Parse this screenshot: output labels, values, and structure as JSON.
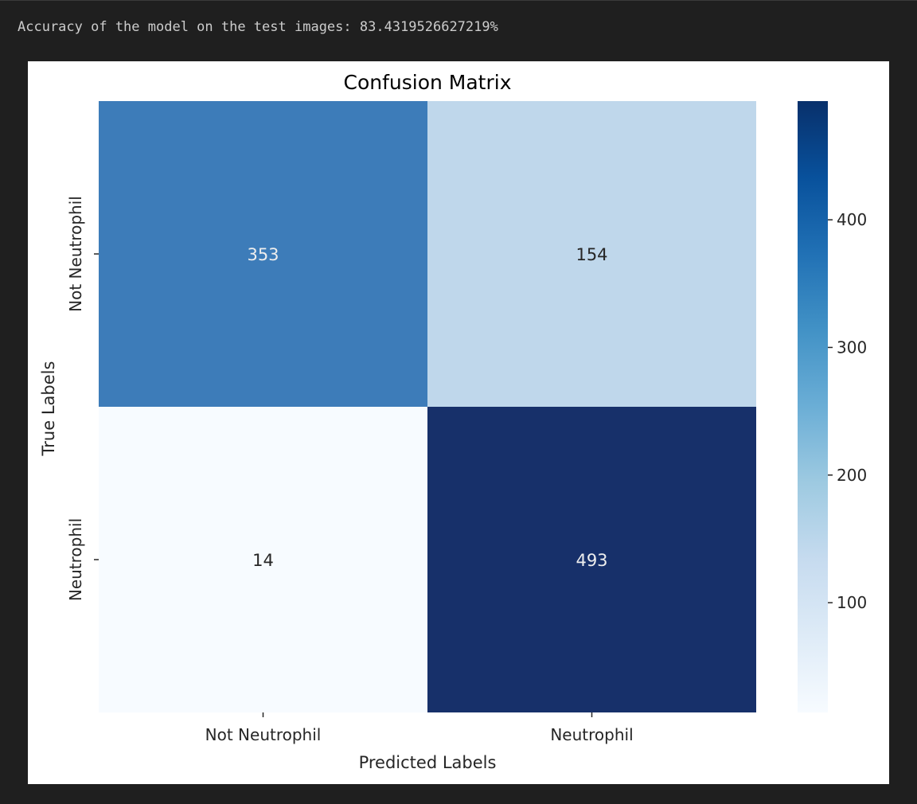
{
  "output": {
    "accuracy_text": "Accuracy of the model on the test images: 83.4319526627219%"
  },
  "chart_data": {
    "type": "heatmap",
    "title": "Confusion Matrix",
    "xlabel": "Predicted Labels",
    "ylabel": "True Labels",
    "x_categories": [
      "Not Neutrophil",
      "Neutrophil"
    ],
    "y_categories": [
      "Not Neutrophil",
      "Neutrophil"
    ],
    "matrix": [
      [
        353,
        154
      ],
      [
        14,
        493
      ]
    ],
    "colormap": "Blues",
    "colorbar": {
      "range": [
        14,
        493
      ],
      "ticks": [
        100,
        200,
        300,
        400
      ]
    },
    "cell_colors": [
      [
        "#3d7cb9",
        "#bfd7eb"
      ],
      [
        "#f7fbff",
        "#17306a"
      ]
    ],
    "cell_text_colors": [
      [
        "#eeeeee",
        "#262626"
      ],
      [
        "#262626",
        "#eeeeee"
      ]
    ]
  }
}
